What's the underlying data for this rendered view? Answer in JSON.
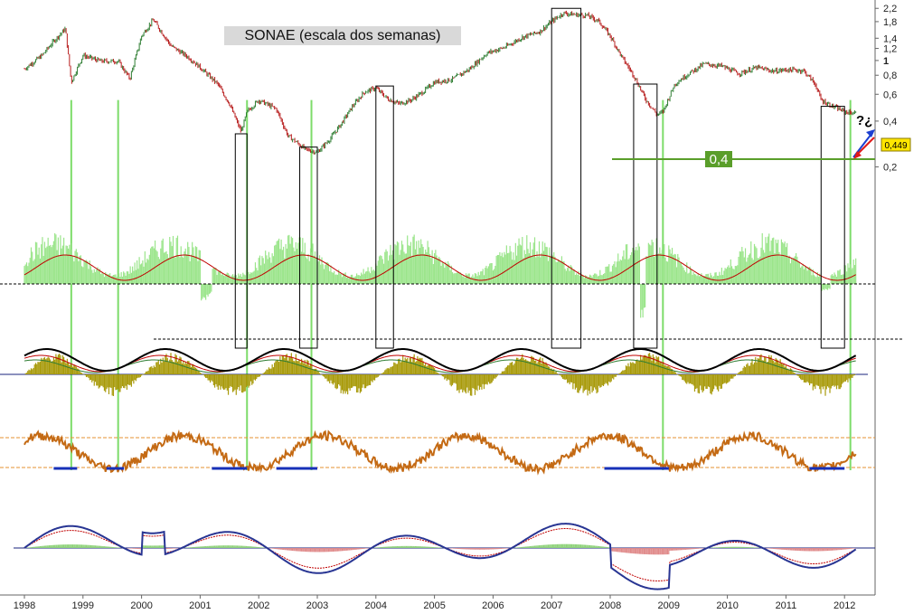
{
  "chart_data": {
    "type": "line",
    "title": "SONAE (escala dos semanas)",
    "price_scale": "log",
    "y_ticks": [
      "2,2",
      "1,8",
      "1,4",
      "1,2",
      "1",
      "0,8",
      "0,6",
      "0,4",
      "0,2"
    ],
    "y_tick_values": [
      2.2,
      1.8,
      1.4,
      1.2,
      1.0,
      0.8,
      0.6,
      0.4,
      0.2
    ],
    "x_ticks": [
      "1998",
      "1999",
      "2000",
      "2001",
      "2002",
      "2003",
      "2004",
      "2005",
      "2006",
      "2007",
      "2008",
      "2009",
      "2010",
      "2011",
      "2012"
    ],
    "last_price_label": "0,449",
    "support_label": "0,4",
    "annotation": "?¿",
    "price_series": {
      "name": "",
      "x": [
        1998.0,
        1998.3,
        1998.5,
        1998.7,
        1998.8,
        1999.0,
        1999.3,
        1999.6,
        1999.8,
        2000.0,
        2000.2,
        2000.5,
        2000.8,
        2001.0,
        2001.3,
        2001.5,
        2001.7,
        2001.8,
        2002.0,
        2002.3,
        2002.5,
        2002.7,
        2002.8,
        2003.0,
        2003.2,
        2003.4,
        2003.6,
        2003.8,
        2004.0,
        2004.2,
        2004.4,
        2004.6,
        2004.8,
        2005.0,
        2005.3,
        2005.6,
        2005.9,
        2006.2,
        2006.5,
        2006.8,
        2007.0,
        2007.2,
        2007.4,
        2007.6,
        2007.8,
        2008.0,
        2008.2,
        2008.4,
        2008.6,
        2008.8,
        2008.9,
        2009.1,
        2009.3,
        2009.6,
        2009.9,
        2010.2,
        2010.5,
        2010.8,
        2011.0,
        2011.3,
        2011.5,
        2011.6,
        2011.8,
        2012.0,
        2012.2
      ],
      "values": [
        0.88,
        1.08,
        1.34,
        1.62,
        0.72,
        1.08,
        0.99,
        0.99,
        0.76,
        1.45,
        1.85,
        1.25,
        1.05,
        0.9,
        0.7,
        0.52,
        0.34,
        0.46,
        0.55,
        0.48,
        0.32,
        0.28,
        0.26,
        0.25,
        0.3,
        0.38,
        0.5,
        0.62,
        0.66,
        0.56,
        0.52,
        0.55,
        0.62,
        0.72,
        0.75,
        0.88,
        1.12,
        1.22,
        1.42,
        1.55,
        1.8,
        2.05,
        2.0,
        1.98,
        1.82,
        1.45,
        1.05,
        0.8,
        0.56,
        0.44,
        0.46,
        0.7,
        0.8,
        0.95,
        0.92,
        0.82,
        0.9,
        0.85,
        0.87,
        0.86,
        0.7,
        0.55,
        0.5,
        0.46,
        0.45
      ]
    }
  }
}
